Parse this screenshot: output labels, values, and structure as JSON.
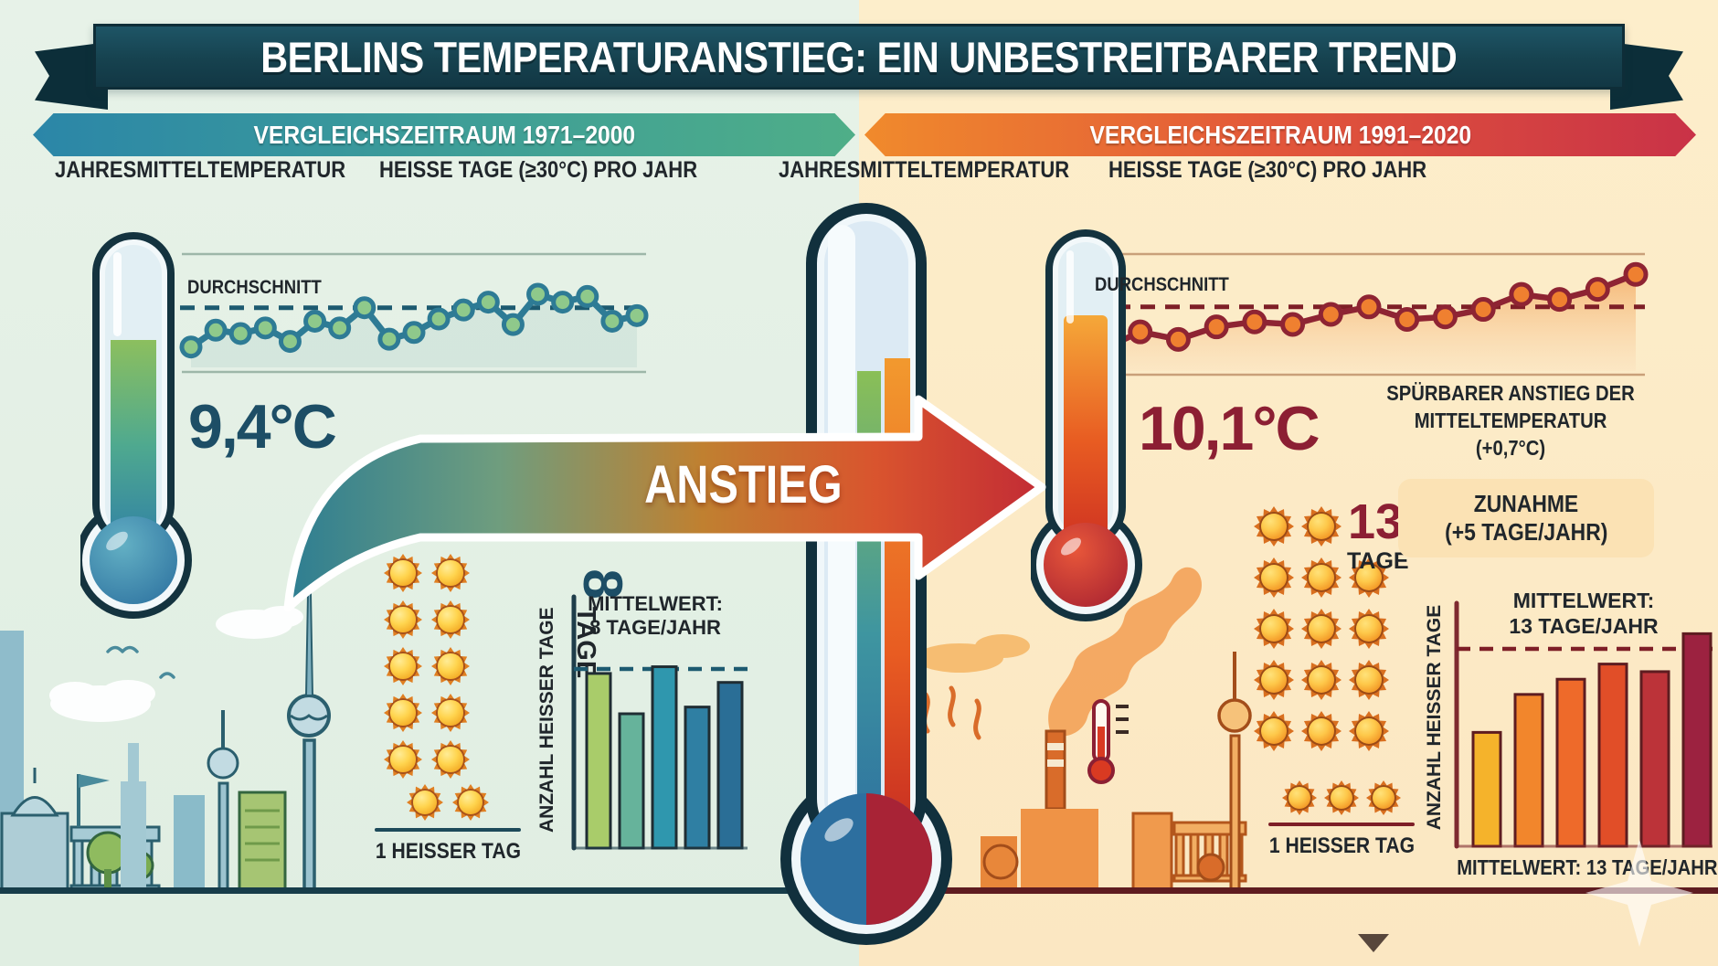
{
  "title": "BERLINS TEMPERATURANSTIEG: EIN UNBESTREITBARER TREND",
  "center": {
    "arrow_label": "ANSTIEG"
  },
  "left": {
    "period": "VERGLEICHSZEITRAUM 1971–2000",
    "col_temp": "JAHRESMITTELTEMPERATUR",
    "col_hot": "HEISSE TAGE (≥30°C) PRO JAHR",
    "avg_label": "DURCHSCHNITT",
    "temp_value": "9,4°C",
    "days_number": "8",
    "days_unit": "TAGE",
    "sun_rows": [
      2,
      2,
      2,
      2,
      2
    ],
    "legend_sun_count": 2,
    "legend_label": "1 HEISSER TAG",
    "bar_title": [
      "MITTELWERT:",
      "8 TAGE/JAHR"
    ],
    "bar_ylabel": "ANZAHL HEISSER TAGE"
  },
  "right": {
    "period": "VERGLEICHSZEITRAUM 1991–2020",
    "col_temp": "JAHRESMITTELTEMPERATUR",
    "col_hot": "HEISSE TAGE (≥30°C) PRO JAHR",
    "avg_label": "DURCHSCHNITT",
    "temp_value": "10,1°C",
    "days_number": "13",
    "days_unit": "TAGE",
    "sun_rows": [
      2,
      3,
      3,
      3,
      3
    ],
    "legend_sun_count": 3,
    "legend_label": "1 HEISSER TAG",
    "note": [
      "SPÜRBARER ANSTIEG DER",
      "MITTELTEMPERATUR (+0,7°C)"
    ],
    "zunahme": [
      "ZUNAHME",
      "(+5 TAGE/JAHR)"
    ],
    "bar_title": [
      "MITTELWERT:",
      "13 TAGE/JAHR"
    ],
    "bar_ylabel": "ANZAHL HEISSER TAGE",
    "bottom_note": "MITTELWERT: 13 TAGE/JAHR"
  },
  "colors": {
    "left_accent": "#1d4e66",
    "right_accent": "#8c1f33",
    "banner_dark": "#16424f",
    "left_banner_gradient": [
      "#2b86a8",
      "#4fae88"
    ],
    "right_banner_gradient": [
      "#f08a2c",
      "#c93247"
    ],
    "sun_body": "#f2a51f",
    "left_ground": "#173d4a",
    "right_ground": "#5e1c20"
  },
  "chart_data": [
    {
      "id": "left_line",
      "type": "line",
      "title": "Jahresmitteltemperatur 1971–2000",
      "average": 9.4,
      "average_label": "DURCHSCHNITT",
      "unit": "°C",
      "values": [
        9.05,
        9.2,
        9.17,
        9.22,
        9.1,
        9.28,
        9.22,
        9.4,
        9.12,
        9.18,
        9.3,
        9.38,
        9.45,
        9.25,
        9.52,
        9.45,
        9.5,
        9.28,
        9.33
      ],
      "ylim": [
        8.95,
        9.65
      ],
      "line_color": "#2e7b95",
      "marker_color": "#8fc98b",
      "dash_color": "#1d5a70",
      "area_color": "#cfe3da",
      "grid": false,
      "legend_position": "none"
    },
    {
      "id": "right_line",
      "type": "line",
      "title": "Jahresmitteltemperatur 1991–2020",
      "average": 10.1,
      "average_label": "DURCHSCHNITT",
      "unit": "°C",
      "values": [
        9.25,
        9.6,
        9.45,
        9.7,
        9.8,
        9.75,
        9.95,
        10.1,
        9.85,
        9.9,
        10.05,
        10.35,
        10.25,
        10.45,
        10.75
      ],
      "ylim": [
        9.0,
        10.9
      ],
      "line_color": "#8e2433",
      "marker_color": "#ef8030",
      "dash_color": "#7e1f27",
      "area_color": "#f6c088",
      "grid": false,
      "legend_position": "none"
    },
    {
      "id": "left_bar",
      "type": "bar",
      "title": "Anzahl heisser Tage 1971–2000",
      "average": 8,
      "average_label": "MITTELWERT: 8 TAGE/JAHR",
      "ylabel": "ANZAHL HEISSER TAGE",
      "values": [
        7.8,
        6.0,
        8.1,
        6.3,
        7.4
      ],
      "ylim": [
        0,
        10
      ],
      "bar_colors": [
        "#a9cc6a",
        "#66b39b",
        "#2f97ae",
        "#2f7fa3",
        "#2a6e96"
      ],
      "dash_color": "#1d5a70",
      "grid": false
    },
    {
      "id": "right_bar",
      "type": "bar",
      "title": "Anzahl heisser Tage 1991–2020",
      "average": 13,
      "average_label": "MITTELWERT: 13 TAGE/JAHR",
      "ylabel": "ANZAHL HEISSER TAGE",
      "values": [
        7.5,
        10,
        11,
        12,
        11.5,
        14
      ],
      "ylim": [
        0,
        15
      ],
      "bar_colors": [
        "#f5b32b",
        "#f2862c",
        "#ee6a2a",
        "#e14e28",
        "#bc3339",
        "#9c2240"
      ],
      "dash_color": "#7e1f27",
      "grid": false
    }
  ]
}
